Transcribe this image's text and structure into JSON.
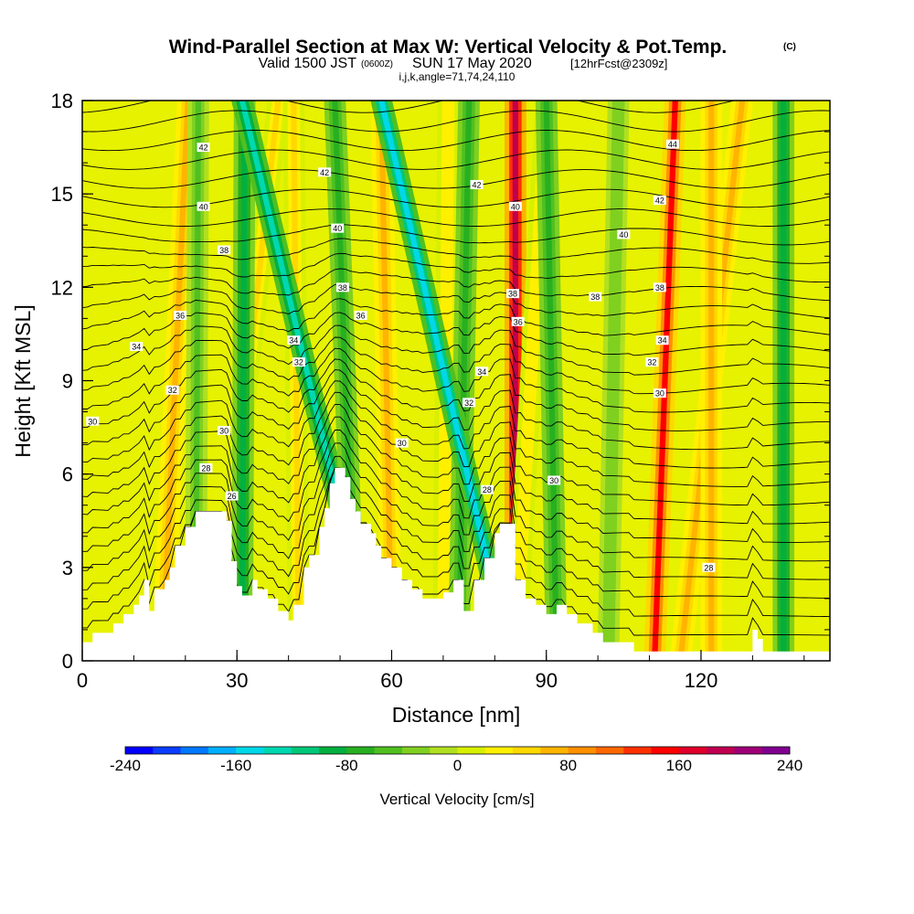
{
  "header": {
    "title": "Wind-Parallel Section at Max W: Vertical Velocity & Pot.Temp.",
    "copyright": "(C)",
    "valid_prefix": "Valid 1500 JST",
    "valid_utc": "(0600Z)",
    "valid_date": "SUN 17 May 2020",
    "forecast": "[12hrFcst@2309z]",
    "indices": "i,j,k,angle=71,74,24,110"
  },
  "colors": {
    "scale": [
      "#0000ff",
      "#0a3dff",
      "#0078ff",
      "#00b0ff",
      "#00d8e8",
      "#00d8b0",
      "#00c878",
      "#00b040",
      "#28b020",
      "#50c020",
      "#80d020",
      "#b0e020",
      "#d8f000",
      "#fff000",
      "#ffd800",
      "#ffb400",
      "#ff9000",
      "#ff6800",
      "#ff3000",
      "#ff0000",
      "#e0002a",
      "#c00050",
      "#a00078",
      "#800090",
      "#6000a0"
    ],
    "terrain": "#ffffff",
    "contour": "#000000"
  },
  "chart_data": {
    "type": "heatmap",
    "title": "Wind-Parallel Section at Max W: Vertical Velocity & Pot.Temp.",
    "xlabel": "Distance [nm]",
    "ylabel": "Height [Kft MSL]",
    "xlim": [
      0,
      145
    ],
    "ylim": [
      0,
      18
    ],
    "xticks": [
      0,
      30,
      60,
      90,
      120
    ],
    "yticks": [
      0,
      3,
      6,
      9,
      12,
      15,
      18
    ],
    "colorbar": {
      "label": "Vertical Velocity [cm/s]",
      "min": -240,
      "max": 240,
      "step": 20,
      "tick_labels": [
        "-240",
        "-160",
        "-80",
        "0",
        "80",
        "160",
        "240"
      ]
    },
    "terrain_kft": [
      [
        0,
        0.6
      ],
      [
        2,
        0.6
      ],
      [
        2,
        0.9
      ],
      [
        6,
        0.9
      ],
      [
        6,
        1.2
      ],
      [
        8,
        1.2
      ],
      [
        8,
        1.5
      ],
      [
        10,
        1.5
      ],
      [
        10,
        1.8
      ],
      [
        11,
        1.8
      ],
      [
        11,
        2.1
      ],
      [
        12,
        2.1
      ],
      [
        12,
        2.6
      ],
      [
        13,
        2.6
      ],
      [
        13,
        1.6
      ],
      [
        14,
        1.6
      ],
      [
        14,
        2.3
      ],
      [
        16,
        2.3
      ],
      [
        16,
        2.6
      ],
      [
        17,
        2.6
      ],
      [
        17,
        3.0
      ],
      [
        18,
        3.0
      ],
      [
        18,
        3.7
      ],
      [
        20,
        3.7
      ],
      [
        20,
        4.3
      ],
      [
        22,
        4.3
      ],
      [
        22,
        4.8
      ],
      [
        28,
        4.8
      ],
      [
        28,
        4.5
      ],
      [
        29,
        4.5
      ],
      [
        29,
        3.2
      ],
      [
        30,
        3.2
      ],
      [
        30,
        2.4
      ],
      [
        31,
        2.4
      ],
      [
        31,
        2.1
      ],
      [
        33,
        2.1
      ],
      [
        33,
        2.6
      ],
      [
        34,
        2.6
      ],
      [
        34,
        2.3
      ],
      [
        36,
        2.3
      ],
      [
        36,
        2.0
      ],
      [
        38,
        2.0
      ],
      [
        38,
        1.6
      ],
      [
        40,
        1.6
      ],
      [
        40,
        1.3
      ],
      [
        41,
        1.3
      ],
      [
        41,
        1.8
      ],
      [
        43,
        1.8
      ],
      [
        43,
        3.0
      ],
      [
        44,
        3.0
      ],
      [
        44,
        3.4
      ],
      [
        46,
        3.4
      ],
      [
        46,
        4.3
      ],
      [
        47,
        4.3
      ],
      [
        47,
        4.9
      ],
      [
        48,
        4.9
      ],
      [
        48,
        5.7
      ],
      [
        49,
        5.7
      ],
      [
        49,
        6.2
      ],
      [
        51,
        6.2
      ],
      [
        51,
        5.9
      ],
      [
        52,
        5.9
      ],
      [
        52,
        5.2
      ],
      [
        53,
        5.2
      ],
      [
        53,
        4.8
      ],
      [
        54,
        4.8
      ],
      [
        54,
        4.4
      ],
      [
        56,
        4.4
      ],
      [
        56,
        4.1
      ],
      [
        57,
        4.1
      ],
      [
        57,
        3.7
      ],
      [
        58,
        3.7
      ],
      [
        58,
        3.3
      ],
      [
        60,
        3.3
      ],
      [
        60,
        3.0
      ],
      [
        62,
        3.0
      ],
      [
        62,
        2.6
      ],
      [
        64,
        2.6
      ],
      [
        64,
        2.3
      ],
      [
        66,
        2.3
      ],
      [
        66,
        2.0
      ],
      [
        70,
        2.0
      ],
      [
        70,
        2.2
      ],
      [
        72,
        2.2
      ],
      [
        72,
        2.6
      ],
      [
        74,
        2.6
      ],
      [
        74,
        1.6
      ],
      [
        76,
        1.6
      ],
      [
        76,
        2.6
      ],
      [
        78,
        2.6
      ],
      [
        78,
        3.3
      ],
      [
        80,
        3.3
      ],
      [
        80,
        4.1
      ],
      [
        81,
        4.1
      ],
      [
        81,
        4.4
      ],
      [
        84,
        4.4
      ],
      [
        84,
        2.6
      ],
      [
        86,
        2.6
      ],
      [
        86,
        2.0
      ],
      [
        88,
        2.0
      ],
      [
        88,
        1.8
      ],
      [
        90,
        1.8
      ],
      [
        90,
        1.5
      ],
      [
        92,
        1.5
      ],
      [
        92,
        1.8
      ],
      [
        94,
        1.8
      ],
      [
        94,
        1.5
      ],
      [
        96,
        1.5
      ],
      [
        96,
        1.2
      ],
      [
        99,
        1.2
      ],
      [
        99,
        0.9
      ],
      [
        101,
        0.9
      ],
      [
        101,
        0.6
      ],
      [
        107,
        0.6
      ],
      [
        107,
        0.3
      ],
      [
        109,
        0.3
      ],
      [
        109,
        0.3
      ],
      [
        114,
        0.3
      ],
      [
        114,
        0.3
      ],
      [
        128,
        0.3
      ],
      [
        128,
        0.3
      ],
      [
        130,
        0.3
      ],
      [
        130,
        1.0
      ],
      [
        131,
        1.0
      ],
      [
        131,
        0.7
      ],
      [
        132,
        0.7
      ],
      [
        132,
        0.3
      ],
      [
        145,
        0.3
      ]
    ],
    "updraft_bands_w_cms": [
      {
        "x_bottom": 15.5,
        "x_top": 20.5,
        "w": 70
      },
      {
        "x_bottom": 22,
        "x_top": 22.5,
        "w": -50
      },
      {
        "x_bottom": 26,
        "x_top": 38,
        "w": 40
      },
      {
        "x_bottom": 31,
        "x_top": 31.5,
        "w": -90
      },
      {
        "x_bottom": 42,
        "x_top": 41,
        "w": 40
      },
      {
        "x_bottom": 57,
        "x_top": 31,
        "w": -130
      },
      {
        "x_bottom": 53,
        "x_top": 49,
        "w": -80
      },
      {
        "x_bottom": 60,
        "x_top": 58,
        "w": 60
      },
      {
        "x_bottom": 70,
        "x_top": 71,
        "w": 30
      },
      {
        "x_bottom": 73,
        "x_top": 75,
        "w": -80
      },
      {
        "x_bottom": 83,
        "x_top": 58,
        "w": -150
      },
      {
        "x_bottom": 84,
        "x_top": 84,
        "w": 190
      },
      {
        "x_bottom": 84,
        "x_top": 90,
        "w": 30
      },
      {
        "x_bottom": 92,
        "x_top": 90,
        "w": -70
      },
      {
        "x_bottom": 111,
        "x_top": 115,
        "w": 140
      },
      {
        "x_bottom": 116,
        "x_top": 128,
        "w": 60
      },
      {
        "x_bottom": 122,
        "x_top": 122,
        "w": 60
      },
      {
        "x_bottom": 136,
        "x_top": 136,
        "w": -90
      },
      {
        "x_bottom": 102,
        "x_top": 104,
        "w": -40
      }
    ],
    "theta_contour_labels": [
      {
        "x": 2,
        "y": 7.7,
        "label": "30"
      },
      {
        "x": 10.5,
        "y": 10.1,
        "label": "34"
      },
      {
        "x": 17.5,
        "y": 8.7,
        "label": "32"
      },
      {
        "x": 19,
        "y": 11.1,
        "label": "36"
      },
      {
        "x": 24,
        "y": 6.2,
        "label": "28"
      },
      {
        "x": 29,
        "y": 5.3,
        "label": "26"
      },
      {
        "x": 27.5,
        "y": 7.4,
        "label": "30"
      },
      {
        "x": 23.5,
        "y": 16.5,
        "label": "42"
      },
      {
        "x": 23.5,
        "y": 14.6,
        "label": "40"
      },
      {
        "x": 27.5,
        "y": 13.2,
        "label": "38"
      },
      {
        "x": 41,
        "y": 10.3,
        "label": "34"
      },
      {
        "x": 42,
        "y": 9.6,
        "label": "32"
      },
      {
        "x": 47,
        "y": 15.7,
        "label": "42"
      },
      {
        "x": 49.5,
        "y": 13.9,
        "label": "40"
      },
      {
        "x": 50.5,
        "y": 12.0,
        "label": "38"
      },
      {
        "x": 54,
        "y": 11.1,
        "label": "36"
      },
      {
        "x": 62,
        "y": 7.0,
        "label": "30"
      },
      {
        "x": 77.5,
        "y": 9.3,
        "label": "34"
      },
      {
        "x": 76.5,
        "y": 15.3,
        "label": "42"
      },
      {
        "x": 75,
        "y": 8.3,
        "label": "32"
      },
      {
        "x": 78.5,
        "y": 5.5,
        "label": "28"
      },
      {
        "x": 84,
        "y": 14.6,
        "label": "40"
      },
      {
        "x": 83.5,
        "y": 11.8,
        "label": "38"
      },
      {
        "x": 84.5,
        "y": 10.9,
        "label": "36"
      },
      {
        "x": 91.5,
        "y": 5.8,
        "label": "30"
      },
      {
        "x": 99.5,
        "y": 11.7,
        "label": "38"
      },
      {
        "x": 105,
        "y": 13.7,
        "label": "40"
      },
      {
        "x": 110.5,
        "y": 9.6,
        "label": "32"
      },
      {
        "x": 112,
        "y": 8.6,
        "label": "30"
      },
      {
        "x": 112,
        "y": 14.8,
        "label": "42"
      },
      {
        "x": 112,
        "y": 12.0,
        "label": "38"
      },
      {
        "x": 112.5,
        "y": 10.3,
        "label": "34"
      },
      {
        "x": 114.5,
        "y": 16.6,
        "label": "44"
      },
      {
        "x": 121.5,
        "y": 3.0,
        "label": "28"
      }
    ]
  }
}
